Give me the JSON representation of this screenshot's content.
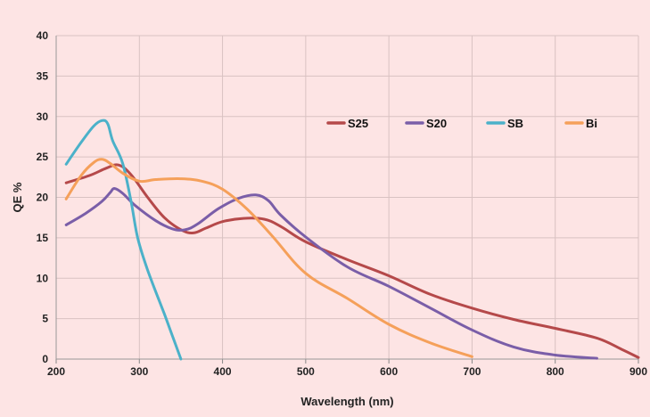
{
  "chart_data": {
    "type": "line",
    "xlabel": "Wavelength (nm)",
    "ylabel": "QE %",
    "xlim": [
      200,
      900
    ],
    "ylim": [
      0,
      40
    ],
    "x_ticks": [
      200,
      300,
      400,
      500,
      600,
      700,
      800,
      900
    ],
    "y_ticks": [
      0,
      5,
      10,
      15,
      20,
      25,
      30,
      35,
      40
    ],
    "grid": true,
    "legend_position": "top-right, inside plot, single row",
    "series": [
      {
        "name": "S25",
        "color": "#b5494a",
        "points": [
          [
            212,
            21.8
          ],
          [
            240,
            22.7
          ],
          [
            260,
            23.6
          ],
          [
            275,
            24.0
          ],
          [
            290,
            22.8
          ],
          [
            310,
            20.0
          ],
          [
            330,
            17.5
          ],
          [
            350,
            16.0
          ],
          [
            365,
            15.6
          ],
          [
            380,
            16.2
          ],
          [
            400,
            17.0
          ],
          [
            425,
            17.4
          ],
          [
            450,
            17.3
          ],
          [
            470,
            16.4
          ],
          [
            500,
            14.5
          ],
          [
            550,
            12.3
          ],
          [
            600,
            10.3
          ],
          [
            650,
            8.0
          ],
          [
            700,
            6.3
          ],
          [
            750,
            4.9
          ],
          [
            800,
            3.8
          ],
          [
            850,
            2.6
          ],
          [
            880,
            1.2
          ],
          [
            900,
            0.2
          ]
        ]
      },
      {
        "name": "S20",
        "color": "#7a5ea8",
        "points": [
          [
            212,
            16.6
          ],
          [
            235,
            18.0
          ],
          [
            255,
            19.5
          ],
          [
            265,
            20.6
          ],
          [
            270,
            21.1
          ],
          [
            280,
            20.5
          ],
          [
            295,
            19.0
          ],
          [
            320,
            17.1
          ],
          [
            340,
            16.1
          ],
          [
            355,
            16.0
          ],
          [
            370,
            16.7
          ],
          [
            395,
            18.6
          ],
          [
            420,
            19.9
          ],
          [
            440,
            20.3
          ],
          [
            455,
            19.6
          ],
          [
            470,
            17.8
          ],
          [
            500,
            15.1
          ],
          [
            550,
            11.4
          ],
          [
            600,
            9.0
          ],
          [
            650,
            6.3
          ],
          [
            700,
            3.6
          ],
          [
            750,
            1.5
          ],
          [
            800,
            0.5
          ],
          [
            850,
            0.1
          ]
        ]
      },
      {
        "name": "SB",
        "color": "#4bb1c9",
        "points": [
          [
            212,
            24.1
          ],
          [
            230,
            26.8
          ],
          [
            245,
            28.8
          ],
          [
            255,
            29.5
          ],
          [
            262,
            29.1
          ],
          [
            268,
            27.0
          ],
          [
            280,
            24.2
          ],
          [
            290,
            19.5
          ],
          [
            298,
            15.0
          ],
          [
            310,
            11.0
          ],
          [
            330,
            5.6
          ],
          [
            340,
            2.8
          ],
          [
            350,
            0.0
          ]
        ]
      },
      {
        "name": "Bi",
        "color": "#f5a05a",
        "points": [
          [
            212,
            19.8
          ],
          [
            230,
            22.7
          ],
          [
            245,
            24.3
          ],
          [
            255,
            24.7
          ],
          [
            265,
            24.2
          ],
          [
            280,
            23.0
          ],
          [
            300,
            22.0
          ],
          [
            320,
            22.2
          ],
          [
            350,
            22.3
          ],
          [
            375,
            22.0
          ],
          [
            400,
            21.0
          ],
          [
            430,
            18.5
          ],
          [
            460,
            15.2
          ],
          [
            500,
            10.6
          ],
          [
            550,
            7.5
          ],
          [
            600,
            4.3
          ],
          [
            650,
            2.0
          ],
          [
            700,
            0.3
          ]
        ]
      }
    ]
  }
}
